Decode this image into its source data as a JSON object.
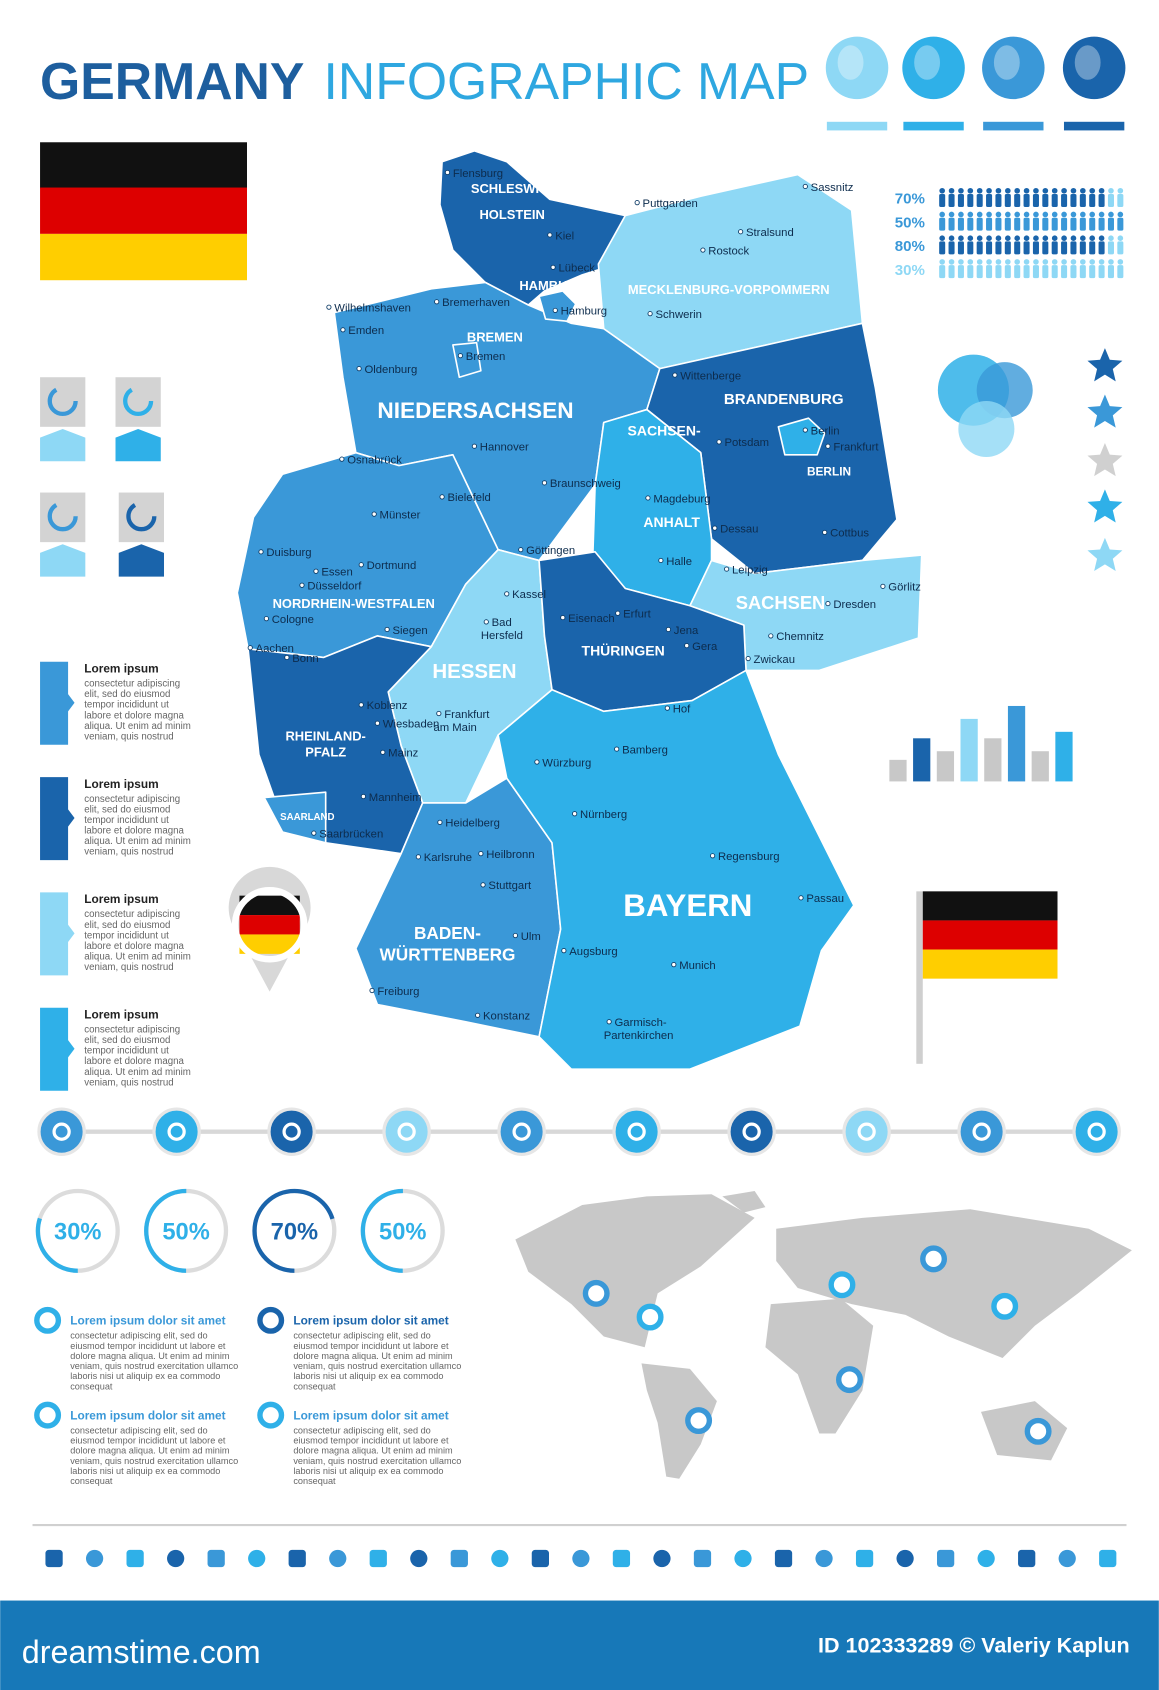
{
  "header": {
    "title_bold": "GERMANY",
    "title_light": "INFOGRAPHIC MAP"
  },
  "people_stats": [
    "70%",
    "50%",
    "80%",
    "30%"
  ],
  "map": {
    "states": [
      {
        "label": [
          "SCHLESWIG-",
          "HOLSTEIN"
        ]
      },
      {
        "label": [
          "HAMBURG"
        ]
      },
      {
        "label": [
          "MECKLENBURG-VORPOMMERN"
        ]
      },
      {
        "label": [
          "BREMEN"
        ]
      },
      {
        "label": [
          "NIEDERSACHSEN"
        ]
      },
      {
        "label": [
          "BRANDENBURG"
        ]
      },
      {
        "label": [
          "BERLIN"
        ]
      },
      {
        "label": [
          "SACHSEN-",
          "ANHALT"
        ]
      },
      {
        "label": [
          "SACHSEN"
        ]
      },
      {
        "label": [
          "NORDRHEIN-WESTFALEN"
        ]
      },
      {
        "label": [
          "HESSEN"
        ]
      },
      {
        "label": [
          "THÜRINGEN"
        ]
      },
      {
        "label": [
          "RHEINLAND-",
          "PFALZ"
        ]
      },
      {
        "label": [
          "SAARLAND"
        ]
      },
      {
        "label": [
          "BADEN-",
          "WÜRTTENBERG"
        ]
      },
      {
        "label": [
          "BAYERN"
        ]
      }
    ],
    "cities": [
      {
        "label": [
          "Flensburg"
        ]
      },
      {
        "label": [
          "Kiel"
        ]
      },
      {
        "label": [
          "Puttgarden"
        ]
      },
      {
        "label": [
          "Sassnitz"
        ]
      },
      {
        "label": [
          "Stralsund"
        ]
      },
      {
        "label": [
          "Rostock"
        ]
      },
      {
        "label": [
          "Lübeck"
        ]
      },
      {
        "label": [
          "Hamburg"
        ]
      },
      {
        "label": [
          "Wilhelmshaven"
        ]
      },
      {
        "label": [
          "Emden"
        ]
      },
      {
        "label": [
          "Bremerhaven"
        ]
      },
      {
        "label": [
          "Oldenburg"
        ]
      },
      {
        "label": [
          "Bremen"
        ]
      },
      {
        "label": [
          "Schwerin"
        ]
      },
      {
        "label": [
          "Wittenberge"
        ]
      },
      {
        "label": [
          "Berlin"
        ]
      },
      {
        "label": [
          "Potsdam"
        ]
      },
      {
        "label": [
          "Frankfurt"
        ]
      },
      {
        "label": [
          "Hannover"
        ]
      },
      {
        "label": [
          "Osnabrück"
        ]
      },
      {
        "label": [
          "Bielefeld"
        ]
      },
      {
        "label": [
          "Münster"
        ]
      },
      {
        "label": [
          "Braunschweig"
        ]
      },
      {
        "label": [
          "Magdeburg"
        ]
      },
      {
        "label": [
          "Dessau"
        ]
      },
      {
        "label": [
          "Cottbus"
        ]
      },
      {
        "label": [
          "Göttingen"
        ]
      },
      {
        "label": [
          "Halle"
        ]
      },
      {
        "label": [
          "Leipzig"
        ]
      },
      {
        "label": [
          "Görlitz"
        ]
      },
      {
        "label": [
          "Dresden"
        ]
      },
      {
        "label": [
          "Duisburg"
        ]
      },
      {
        "label": [
          "Essen"
        ]
      },
      {
        "label": [
          "Dortmund"
        ]
      },
      {
        "label": [
          "Düsseldorf"
        ]
      },
      {
        "label": [
          "Cologne"
        ]
      },
      {
        "label": [
          "Kassel"
        ]
      },
      {
        "label": [
          "Siegen"
        ]
      },
      {
        "label": [
          "Aachen"
        ]
      },
      {
        "label": [
          "Bonn"
        ]
      },
      {
        "label": [
          "Bad",
          "Hersfeld"
        ]
      },
      {
        "label": [
          "Eisenach"
        ]
      },
      {
        "label": [
          "Erfurt"
        ]
      },
      {
        "label": [
          "Jena"
        ]
      },
      {
        "label": [
          "Gera"
        ]
      },
      {
        "label": [
          "Chemnitz"
        ]
      },
      {
        "label": [
          "Zwickau"
        ]
      },
      {
        "label": [
          "Koblenz"
        ]
      },
      {
        "label": [
          "Wiesbaden"
        ]
      },
      {
        "label": [
          "Frankfurt",
          "am Main"
        ]
      },
      {
        "label": [
          "Hof"
        ]
      },
      {
        "label": [
          "Mainz"
        ]
      },
      {
        "label": [
          "Bamberg"
        ]
      },
      {
        "label": [
          "Würzburg"
        ]
      },
      {
        "label": [
          "Mannheim"
        ]
      },
      {
        "label": [
          "Saarbrücken"
        ]
      },
      {
        "label": [
          "Heidelberg"
        ]
      },
      {
        "label": [
          "Nürnberg"
        ]
      },
      {
        "label": [
          "Karlsruhe"
        ]
      },
      {
        "label": [
          "Heilbronn"
        ]
      },
      {
        "label": [
          "Regensburg"
        ]
      },
      {
        "label": [
          "Stuttgart"
        ]
      },
      {
        "label": [
          "Passau"
        ]
      },
      {
        "label": [
          "Ulm"
        ]
      },
      {
        "label": [
          "Augsburg"
        ]
      },
      {
        "label": [
          "Munich"
        ]
      },
      {
        "label": [
          "Freiburg"
        ]
      },
      {
        "label": [
          "Konstanz"
        ]
      },
      {
        "label": [
          "Garmisch-",
          "Partenkirchen"
        ]
      }
    ]
  },
  "lorem_blocks": [
    {
      "title": "Lorem ipsum",
      "lines": [
        "consectetur adipiscing",
        "elit, sed do eiusmod",
        "tempor incididunt ut",
        "labore et dolore magna",
        "aliqua. Ut enim ad minim",
        "veniam, quis nostrud"
      ]
    },
    {
      "title": "Lorem ipsum",
      "lines": [
        "consectetur adipiscing",
        "elit, sed do eiusmod",
        "tempor incididunt ut",
        "labore et dolore magna",
        "aliqua. Ut enim ad minim",
        "veniam, quis nostrud"
      ]
    },
    {
      "title": "Lorem ipsum",
      "lines": [
        "consectetur adipiscing",
        "elit, sed do eiusmod",
        "tempor incididunt ut",
        "labore et dolore magna",
        "aliqua. Ut enim ad minim",
        "veniam, quis nostrud"
      ]
    },
    {
      "title": "Lorem ipsum",
      "lines": [
        "consectetur adipiscing",
        "elit, sed do eiusmod",
        "tempor incididunt ut",
        "labore et dolore magna",
        "aliqua. Ut enim ad minim",
        "veniam, quis nostrud"
      ]
    }
  ],
  "progress_rings": [
    "30%",
    "50%",
    "70%",
    "50%"
  ],
  "notes": [
    {
      "title": "Lorem ipsum dolor sit amet",
      "lines": [
        "consectetur adipiscing elit, sed do",
        "eiusmod tempor incididunt ut labore et",
        "dolore magna aliqua. Ut enim ad minim",
        "veniam, quis nostrud exercitation ullamco",
        "laboris nisi ut aliquip ex ea commodo",
        "consequat"
      ]
    },
    {
      "title": "Lorem ipsum dolor sit amet",
      "lines": [
        "consectetur adipiscing elit, sed do",
        "eiusmod tempor incididunt ut labore et",
        "dolore magna aliqua. Ut enim ad minim",
        "veniam, quis nostrud exercitation ullamco",
        "laboris nisi ut aliquip ex ea commodo",
        "consequat"
      ]
    },
    {
      "title": "Lorem ipsum dolor sit amet",
      "lines": [
        "consectetur adipiscing elit, sed do",
        "eiusmod tempor incididunt ut labore et",
        "dolore magna aliqua. Ut enim ad minim",
        "veniam, quis nostrud exercitation ullamco",
        "laboris nisi ut aliquip ex ea commodo",
        "consequat"
      ]
    },
    {
      "title": "Lorem ipsum dolor sit amet",
      "lines": [
        "consectetur adipiscing elit, sed do",
        "eiusmod tempor incididunt ut labore et",
        "dolore magna aliqua. Ut enim ad minim",
        "veniam, quis nostrud exercitation ullamco",
        "laboris nisi ut aliquip ex ea commodo",
        "consequat"
      ]
    }
  ],
  "footer": {
    "logo": "dreamstime.com",
    "credit": "ID 102333289 © Valeriy Kaplun"
  }
}
